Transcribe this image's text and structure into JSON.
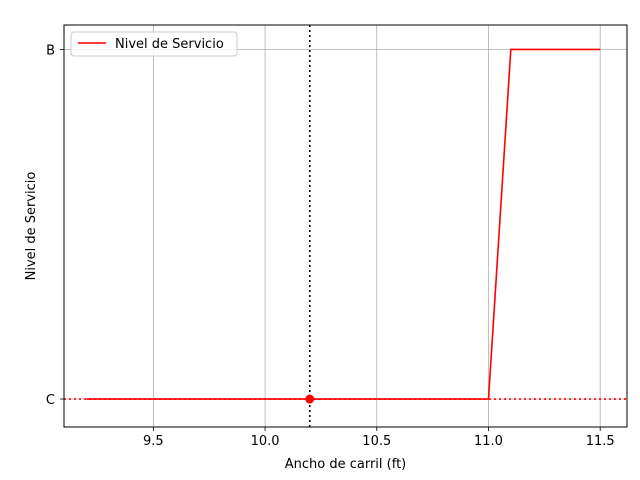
{
  "chart_data": {
    "type": "line",
    "xlabel": "Ancho de carril (ft)",
    "ylabel": "Nivel de Servicio",
    "xlim": [
      9.1,
      11.62
    ],
    "ylim": [
      -0.08,
      1.07
    ],
    "x_ticks": [
      9.5,
      10.0,
      10.5,
      11.0,
      11.5
    ],
    "x_tick_labels": [
      "9.5",
      "10.0",
      "10.5",
      "11.0",
      "11.5"
    ],
    "y_ticks": [
      0,
      1
    ],
    "y_tick_labels": [
      "C",
      "B"
    ],
    "grid": true,
    "legend": {
      "placement": "top-left",
      "entries": [
        "Nivel de Servicio"
      ]
    },
    "series": [
      {
        "name": "Nivel de Servicio",
        "color": "#ff0000",
        "x": [
          9.2,
          9.3,
          9.4,
          9.5,
          9.6,
          9.7,
          9.8,
          9.9,
          10.0,
          10.1,
          10.2,
          10.3,
          10.4,
          10.5,
          10.6,
          10.7,
          10.8,
          10.9,
          11.0,
          11.1,
          11.2,
          11.3,
          11.4,
          11.5
        ],
        "y": [
          0,
          0,
          0,
          0,
          0,
          0,
          0,
          0,
          0,
          0,
          0,
          0,
          0,
          0,
          0,
          0,
          0,
          0,
          0,
          1,
          1,
          1,
          1,
          1
        ]
      }
    ],
    "reference_lines": {
      "vertical_x": 10.2,
      "vertical_color": "#000000",
      "horizontal_y": 0,
      "horizontal_color": "#ff0000"
    },
    "marker": {
      "x": 10.2,
      "y": 0,
      "color": "#ff0000"
    }
  }
}
